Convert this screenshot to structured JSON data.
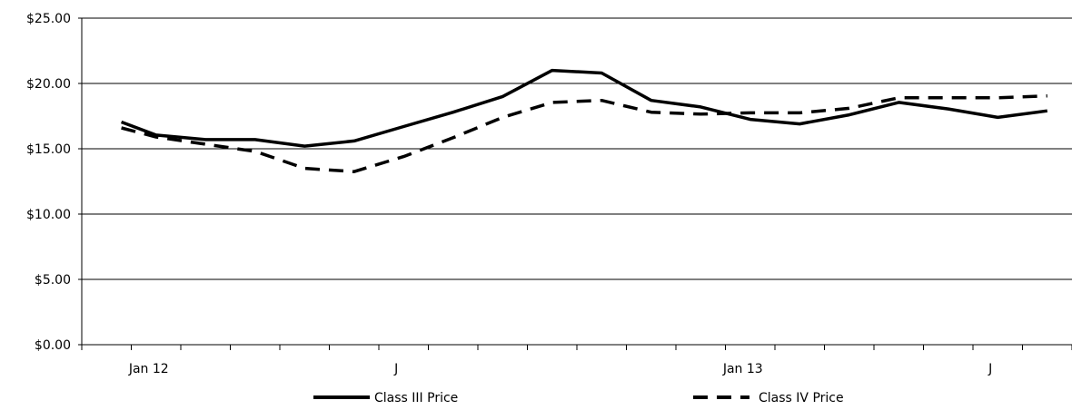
{
  "chart_data": {
    "type": "line",
    "y_tick_labels": [
      "$0.00",
      "$5.00",
      "$10.00",
      "$15.00",
      "$20.00",
      "$25.00"
    ],
    "y_ticks": [
      0,
      5,
      10,
      15,
      20,
      25
    ],
    "ylim": [
      0,
      25
    ],
    "x_tick_labels": [
      {
        "label": "Jan 12",
        "x": 1
      },
      {
        "label": "J",
        "x": 6
      },
      {
        "label": "Jan 13",
        "x": 13
      },
      {
        "label": "J",
        "x": 18
      }
    ],
    "x_count": 20,
    "grid": "horizontal",
    "legend_position": "bottom",
    "series": [
      {
        "name": "Class III Price",
        "style": "solid",
        "color": "#000000",
        "x": [
          0.3,
          1,
          2,
          3,
          4,
          5,
          6,
          7,
          8,
          9,
          10,
          11,
          12,
          13,
          14,
          15,
          16,
          17,
          18,
          19
        ],
        "values": [
          17.05,
          16.05,
          15.7,
          15.7,
          15.2,
          15.6,
          16.7,
          17.8,
          19.0,
          21.0,
          20.8,
          18.7,
          18.2,
          17.25,
          16.9,
          17.6,
          18.55,
          18.05,
          17.4,
          17.9
        ]
      },
      {
        "name": "Class IV Price",
        "style": "dashed",
        "color": "#000000",
        "x": [
          0.3,
          1,
          2,
          3,
          4,
          5,
          6,
          7,
          8,
          9,
          10,
          11,
          12,
          13,
          14,
          15,
          16,
          17,
          18,
          19
        ],
        "values": [
          16.6,
          15.9,
          15.35,
          14.8,
          13.5,
          13.25,
          14.4,
          15.85,
          17.4,
          18.55,
          18.7,
          17.8,
          17.65,
          17.75,
          17.75,
          18.1,
          18.9,
          18.9,
          18.9,
          19.05
        ]
      }
    ]
  }
}
